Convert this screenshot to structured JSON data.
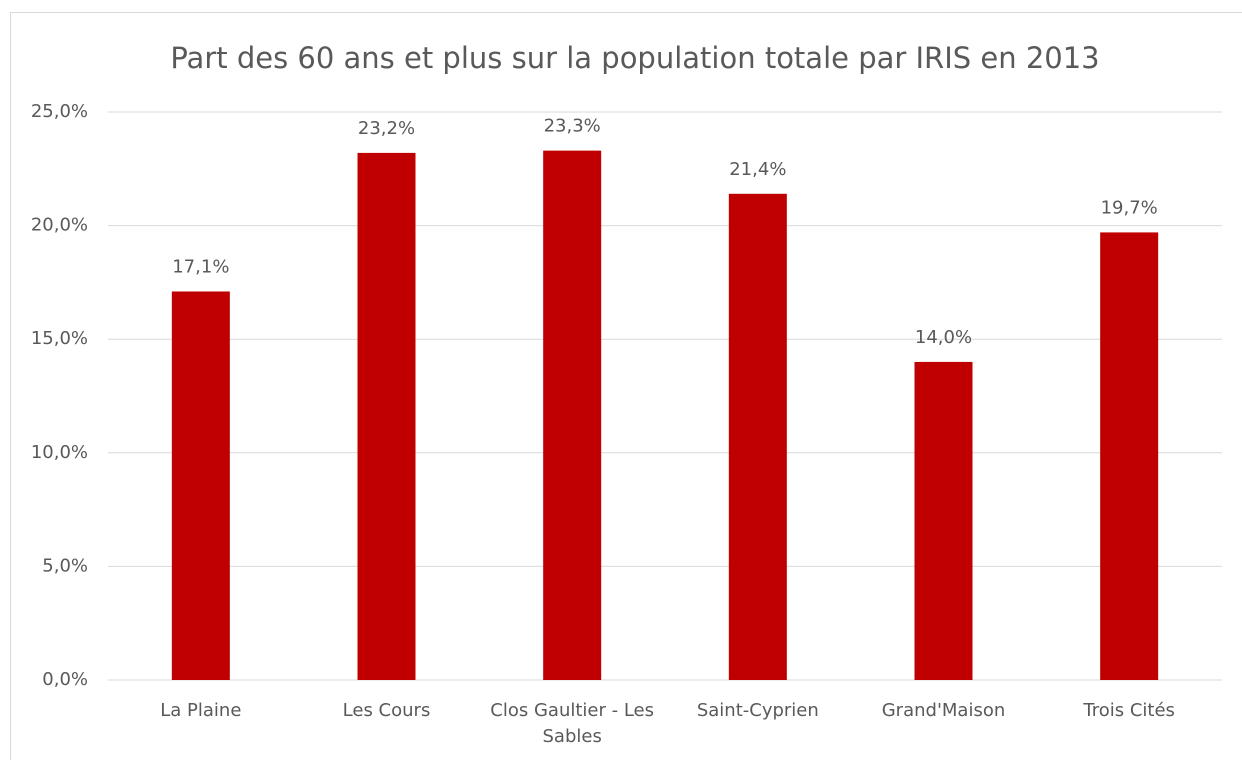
{
  "chart_data": {
    "type": "bar",
    "title": "Part des 60 ans et plus sur la population totale par IRIS en 2013",
    "categories": [
      "La Plaine",
      "Les Cours",
      "Clos Gaultier - Les Sables",
      "Saint-Cyprien",
      "Grand'Maison",
      "Trois Cités"
    ],
    "values": [
      17.1,
      23.2,
      23.3,
      21.4,
      14.0,
      19.7
    ],
    "value_labels": [
      "17,1%",
      "23,2%",
      "23,3%",
      "21,4%",
      "14,0%",
      "19,7%"
    ],
    "color": "#c00000",
    "ylim": [
      0,
      25
    ],
    "yticks": [
      {
        "value": 0,
        "label": "0,0%"
      },
      {
        "value": 5,
        "label": "5,0%"
      },
      {
        "value": 10,
        "label": "10,0%"
      },
      {
        "value": 15,
        "label": "15,0%"
      },
      {
        "value": 20,
        "label": "20,0%"
      },
      {
        "value": 25,
        "label": "25,0%"
      }
    ],
    "grid": true
  }
}
